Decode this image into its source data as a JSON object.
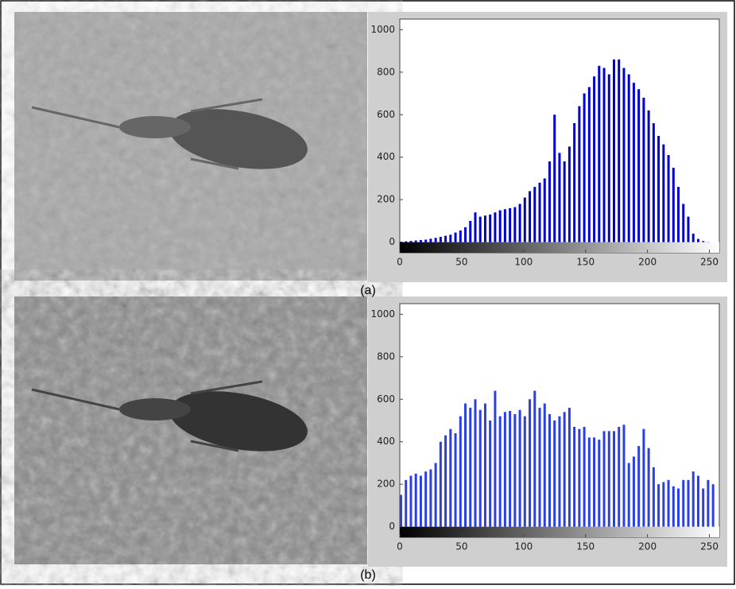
{
  "chart_data": [
    {
      "type": "bar",
      "label": "(a)",
      "color": "#0000cc",
      "x": [
        0,
        4,
        8,
        12,
        16,
        20,
        24,
        28,
        32,
        36,
        40,
        44,
        48,
        52,
        56,
        60,
        64,
        68,
        72,
        76,
        80,
        84,
        88,
        92,
        96,
        100,
        104,
        108,
        112,
        116,
        120,
        124,
        128,
        132,
        136,
        140,
        144,
        148,
        152,
        156,
        160,
        164,
        168,
        172,
        176,
        180,
        184,
        188,
        192,
        196,
        200,
        204,
        208,
        212,
        216,
        220,
        224,
        228,
        232,
        236,
        240,
        244,
        248,
        252
      ],
      "values": [
        2,
        4,
        6,
        8,
        10,
        12,
        16,
        20,
        25,
        30,
        35,
        45,
        55,
        70,
        100,
        140,
        120,
        125,
        130,
        140,
        150,
        155,
        160,
        165,
        180,
        210,
        240,
        260,
        280,
        300,
        380,
        600,
        420,
        380,
        450,
        560,
        640,
        700,
        730,
        780,
        830,
        820,
        790,
        860,
        860,
        820,
        790,
        750,
        720,
        680,
        620,
        560,
        500,
        460,
        410,
        350,
        260,
        180,
        120,
        40,
        15,
        5,
        1,
        0
      ],
      "xlim": [
        0,
        258
      ],
      "ylim": [
        -50,
        1050
      ],
      "xticks": [
        0,
        50,
        100,
        150,
        200,
        250
      ],
      "yticks": [
        0,
        200,
        400,
        600,
        800,
        1000
      ]
    },
    {
      "type": "bar",
      "label": "(b)",
      "color": "#2a3fe6",
      "x": [
        0,
        4,
        8,
        12,
        16,
        20,
        24,
        28,
        32,
        36,
        40,
        44,
        48,
        52,
        56,
        60,
        64,
        68,
        72,
        76,
        80,
        84,
        88,
        92,
        96,
        100,
        104,
        108,
        112,
        116,
        120,
        124,
        128,
        132,
        136,
        140,
        144,
        148,
        152,
        156,
        160,
        164,
        168,
        172,
        176,
        180,
        184,
        188,
        192,
        196,
        200,
        204,
        208,
        212,
        216,
        220,
        224,
        228,
        232,
        236,
        240,
        244,
        248,
        252
      ],
      "values": [
        150,
        220,
        240,
        250,
        240,
        260,
        270,
        300,
        400,
        430,
        460,
        440,
        520,
        580,
        560,
        600,
        550,
        580,
        500,
        640,
        520,
        540,
        545,
        530,
        550,
        520,
        600,
        640,
        560,
        580,
        530,
        500,
        520,
        540,
        560,
        470,
        460,
        470,
        420,
        420,
        410,
        450,
        450,
        450,
        470,
        480,
        300,
        330,
        380,
        460,
        370,
        280,
        200,
        210,
        220,
        190,
        180,
        220,
        220,
        260,
        240,
        180,
        220,
        200
      ],
      "xlim": [
        0,
        258
      ],
      "ylim": [
        -50,
        1050
      ],
      "xticks": [
        0,
        50,
        100,
        150,
        200,
        250
      ],
      "yticks": [
        0,
        200,
        400,
        600,
        800,
        1000
      ]
    }
  ]
}
